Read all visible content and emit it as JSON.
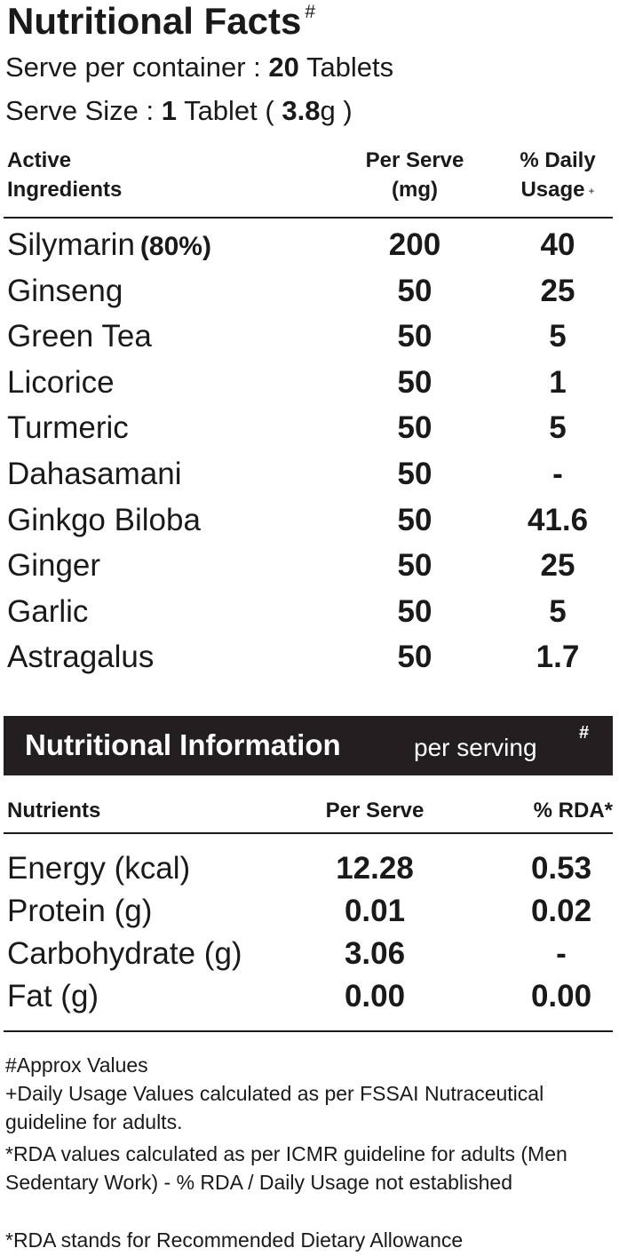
{
  "title": "Nutritional Facts",
  "title_mark": "#",
  "serve_per_container": {
    "label": "Serve per container :",
    "value": "20",
    "unit": "Tablets"
  },
  "serve_size": {
    "label": "Serve Size :",
    "value": "1",
    "unit": "Tablet (",
    "weight": "3.8",
    "weight_unit": "g )"
  },
  "ingredients": {
    "headers": [
      "Active Ingredients",
      "Per Serve (mg)",
      "% Daily Usage"
    ],
    "header_mark": "+",
    "rows": [
      {
        "name": "Silymarin",
        "note": "(80%)",
        "per_serve": "200",
        "daily": "40"
      },
      {
        "name": "Ginseng",
        "per_serve": "50",
        "daily": "25"
      },
      {
        "name": "Green Tea",
        "per_serve": "50",
        "daily": "5"
      },
      {
        "name": "Licorice",
        "per_serve": "50",
        "daily": "1"
      },
      {
        "name": "Turmeric",
        "per_serve": "50",
        "daily": "5"
      },
      {
        "name": "Dahasamani",
        "per_serve": "50",
        "daily": "-"
      },
      {
        "name": "Ginkgo Biloba",
        "per_serve": "50",
        "daily": "41.6"
      },
      {
        "name": "Ginger",
        "per_serve": "50",
        "daily": "25"
      },
      {
        "name": "Garlic",
        "per_serve": "50",
        "daily": "5"
      },
      {
        "name": "Astragalus",
        "per_serve": "50",
        "daily": "1.7"
      }
    ]
  },
  "banner": {
    "title": "Nutritional Information",
    "subtitle": "per serving",
    "mark": "#"
  },
  "nutrients": {
    "headers": [
      "Nutrients",
      "Per Serve",
      "% RDA*"
    ],
    "rows": [
      {
        "name": "Energy (kcal)",
        "per_serve": "12.28",
        "rda": "0.53"
      },
      {
        "name": "Protein (g)",
        "per_serve": "0.01",
        "rda": "0.02"
      },
      {
        "name": "Carbohydrate (g)",
        "per_serve": "3.06",
        "rda": "-"
      },
      {
        "name": "Fat (g)",
        "per_serve": "0.00",
        "rda": "0.00"
      }
    ]
  },
  "footnotes": [
    "#Approx Values",
    "+Daily Usage Values calculated as per FSSAI Nutraceutical guideline for adults.",
    "*RDA values calculated as per ICMR guideline for adults (Men Sedentary Work) - % RDA / Daily Usage not established",
    "*RDA stands for Recommended Dietary Allowance"
  ]
}
